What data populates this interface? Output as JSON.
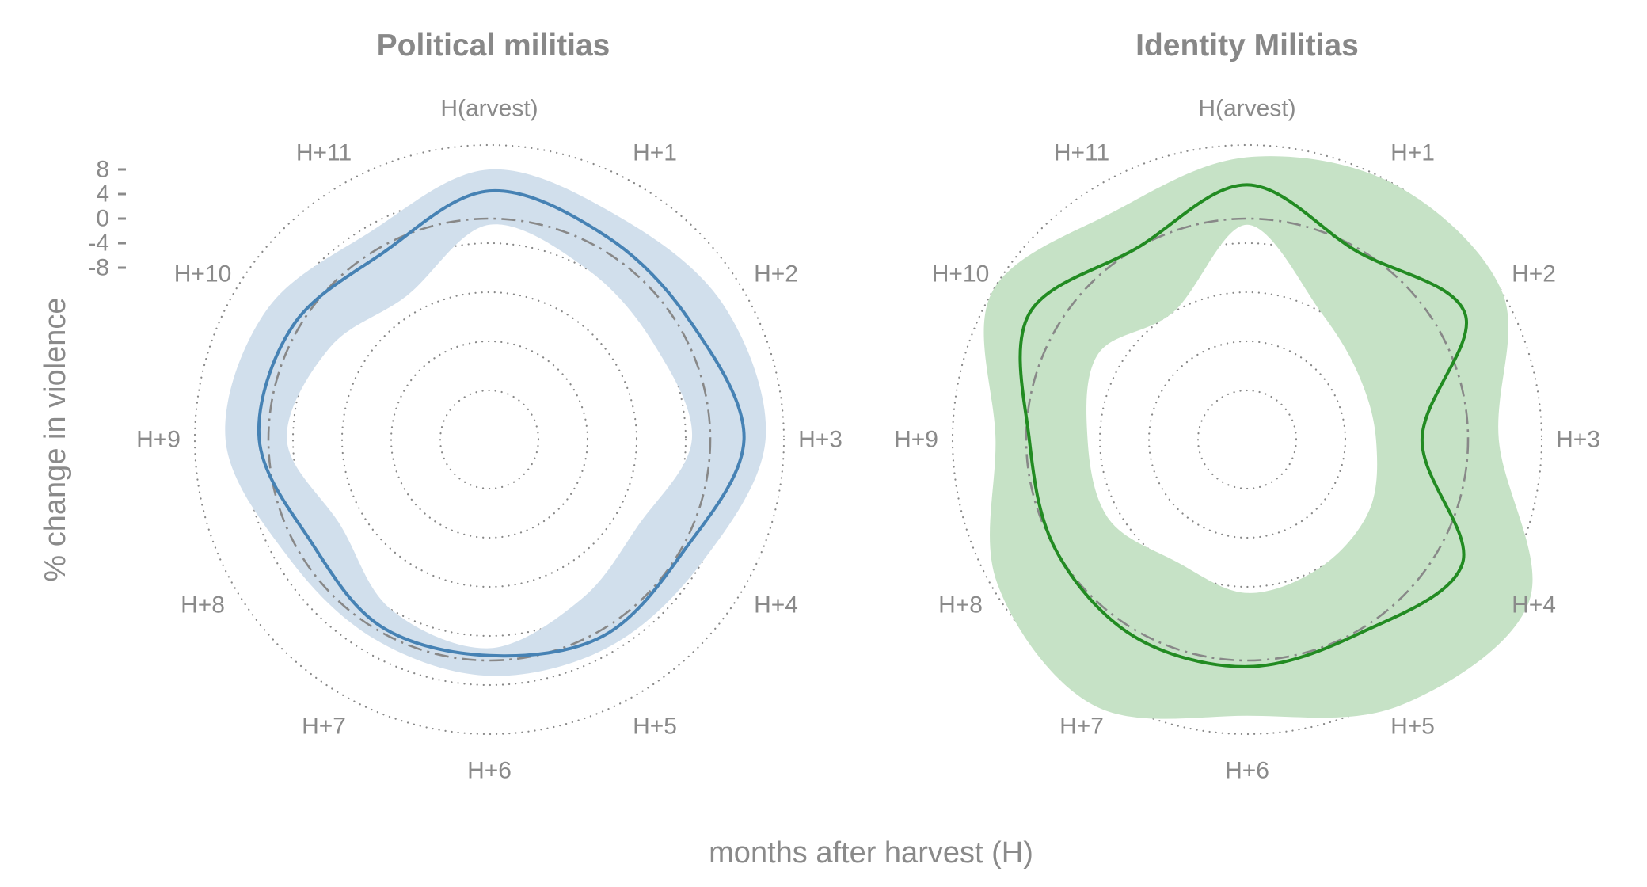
{
  "figure": {
    "xlabel": "months after harvest (H)",
    "ylabel": "% change in violence"
  },
  "colors": {
    "political_line": "#4682B4",
    "political_band": "#D1DFEC",
    "identity_line": "#228B22",
    "identity_band": "#C6E2C6",
    "grid": "#888888",
    "reference": "#888888",
    "text": "#8a8a8a"
  },
  "chart_data": [
    {
      "type": "radar",
      "title": "Political militias",
      "categories": [
        "H(arvest)",
        "H+1",
        "H+2",
        "H+3",
        "H+4",
        "H+5",
        "H+6",
        "H+7",
        "H+8",
        "H+9",
        "H+10",
        "H+11"
      ],
      "r_ticks": [
        8,
        4,
        0,
        -4,
        -8
      ],
      "r_tick_labels": [
        "8",
        "4",
        "0",
        "-4",
        "-8"
      ],
      "rlim": [
        -36,
        12
      ],
      "grid": true,
      "reference_value": 0,
      "series": [
        {
          "values": [
            4.5,
            2.2,
            2.0,
            5.5,
            0.5,
            1.0,
            -0.8,
            -0.8,
            -2.5,
            1.5,
            1.0,
            -1.0
          ],
          "lower": [
            -1.0,
            -4.0,
            -5.0,
            -3.0,
            -8.0,
            -6.0,
            -2.0,
            -4.0,
            -8.0,
            -3.0,
            -6.0,
            -9.0
          ],
          "upper": [
            8.0,
            6.0,
            8.0,
            9.0,
            4.0,
            3.0,
            2.5,
            1.5,
            2.0,
            7.0,
            6.0,
            3.0
          ]
        }
      ]
    },
    {
      "type": "radar",
      "title": "Identity Militias",
      "categories": [
        "H(arvest)",
        "H+1",
        "H+2",
        "H+3",
        "H+4",
        "H+5",
        "H+6",
        "H+7",
        "H+8",
        "H+9",
        "H+10",
        "H+11"
      ],
      "rlim": [
        -36,
        12
      ],
      "grid": true,
      "reference_value": 0,
      "series": [
        {
          "values": [
            5.5,
            -0.5,
            5.0,
            -7.5,
            4.5,
            0.5,
            1.0,
            1.0,
            0.0,
            -0.5,
            5.0,
            0.0
          ],
          "lower": [
            -1.0,
            -12.0,
            -15.0,
            -15.0,
            -13.0,
            -12.0,
            -11.0,
            -13.0,
            -10.0,
            -10.0,
            -8.0,
            -12.0
          ],
          "upper": [
            10.0,
            12.0,
            12.0,
            5.0,
            17.0,
            14.0,
            9.0,
            14.0,
            11.0,
            5.0,
            12.0,
            7.0
          ]
        }
      ]
    }
  ]
}
